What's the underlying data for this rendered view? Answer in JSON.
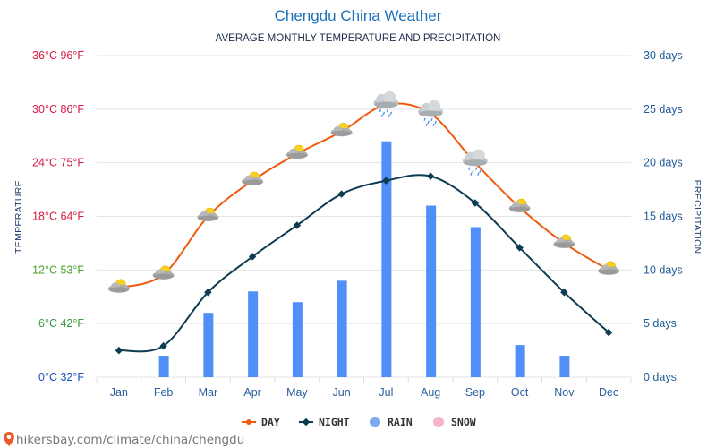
{
  "chart_data": {
    "type": "line",
    "title": "Chengdu China Weather",
    "subtitle": "AVERAGE MONTHLY TEMPERATURE AND PRECIPITATION",
    "categories": [
      "Jan",
      "Feb",
      "Mar",
      "Apr",
      "May",
      "Jun",
      "Jul",
      "Aug",
      "Sep",
      "Oct",
      "Nov",
      "Dec"
    ],
    "series": [
      {
        "name": "DAY",
        "kind": "line",
        "axis": "left",
        "color": "#ee5a0c",
        "values": [
          10,
          11.5,
          18,
          22,
          25,
          27.5,
          30.5,
          29.5,
          24,
          19,
          15,
          12
        ]
      },
      {
        "name": "NIGHT",
        "kind": "line",
        "axis": "left",
        "color": "#0d3b52",
        "values": [
          3,
          3.5,
          9.5,
          13.5,
          17,
          20.5,
          22,
          22.5,
          19.5,
          14.5,
          9.5,
          5
        ]
      },
      {
        "name": "RAIN",
        "kind": "bar",
        "axis": "right",
        "color": "#4f8ff7",
        "values": [
          0,
          2,
          6,
          8,
          7,
          9,
          22,
          16,
          14,
          3,
          2,
          0
        ]
      },
      {
        "name": "SNOW",
        "kind": "bar",
        "axis": "right",
        "color": "#f7b6c8",
        "values": [
          0,
          0,
          0,
          0,
          0,
          0,
          0,
          0,
          0,
          0,
          0,
          0
        ]
      }
    ],
    "left_axis": {
      "label": "TEMPERATURE",
      "range": [
        0,
        36
      ],
      "ticks": [
        {
          "value": 0,
          "label": "0°C 32°F",
          "color": "#1a4fb8"
        },
        {
          "value": 6,
          "label": "6°C 42°F",
          "color": "#3a9a3a"
        },
        {
          "value": 12,
          "label": "12°C 53°F",
          "color": "#4aa02a"
        },
        {
          "value": 18,
          "label": "18°C 64°F",
          "color": "#d81b45"
        },
        {
          "value": 24,
          "label": "24°C 75°F",
          "color": "#d81b45"
        },
        {
          "value": 30,
          "label": "30°C 86°F",
          "color": "#d81b45"
        },
        {
          "value": 36,
          "label": "36°C 96°F",
          "color": "#d81b45"
        }
      ]
    },
    "right_axis": {
      "label": "PRECIPITATION",
      "range": [
        0,
        30
      ],
      "ticks": [
        {
          "value": 0,
          "label": "0 days"
        },
        {
          "value": 5,
          "label": "5 days"
        },
        {
          "value": 10,
          "label": "10 days"
        },
        {
          "value": 15,
          "label": "15 days"
        },
        {
          "value": 20,
          "label": "20 days"
        },
        {
          "value": 25,
          "label": "25 days"
        },
        {
          "value": 30,
          "label": "30 days"
        }
      ]
    },
    "weather_icons": [
      "partly-cloudy",
      "partly-cloudy",
      "partly-cloudy",
      "partly-cloudy",
      "partly-cloudy",
      "partly-cloudy",
      "rain-cloud",
      "rain-cloud",
      "rain-cloud",
      "partly-cloudy",
      "partly-cloudy",
      "partly-cloudy"
    ],
    "grid": true,
    "legend_position": "bottom-center"
  },
  "source": "hikersbay.com/climate/china/chengdu",
  "source_icon": "map-pin-icon"
}
